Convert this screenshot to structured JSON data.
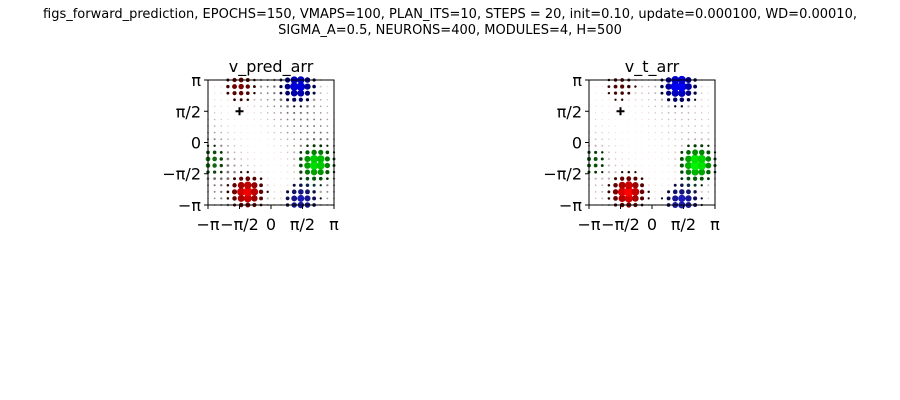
{
  "figure": {
    "suptitle_line1": "figs_forward_prediction, EPOCHS=150, VMAPS=100, PLAN_ITS=10, STEPS = 20, init=0.10, update=0.000100, WD=0.00010,",
    "suptitle_line2": "SIGMA_A=0.5, NEURONS=400, MODULES=4, H=500"
  },
  "chart_data": [
    {
      "type": "scatter",
      "title": "v_pred_arr",
      "xlabel": "",
      "ylabel": "",
      "xlim": [
        -3.1416,
        3.1416
      ],
      "ylim": [
        -3.1416,
        3.1416
      ],
      "x_ticks": [
        "−π",
        "−π/2",
        "0",
        "π/2",
        "π"
      ],
      "y_ticks": [
        "−π",
        "−π/2",
        "0",
        "π/2",
        "π"
      ],
      "grid_points": 20,
      "grid": false,
      "legend": "none",
      "marker": {
        "label": "+",
        "x": -1.5708,
        "y": 1.5708
      },
      "color_peaks": {
        "red": {
          "x": -1.2,
          "y": -2.5,
          "amplitude": 0.95
        },
        "green": {
          "x": 2.25,
          "y": -1.05,
          "amplitude": 0.9
        },
        "blue": {
          "x": 1.35,
          "y": 2.85,
          "amplitude": 0.9
        }
      },
      "secondary_peaks": [
        {
          "color": "#c00000",
          "x": -1.55,
          "y": 2.85,
          "amplitude": 0.5
        },
        {
          "color": "#2222dd",
          "x": 1.5,
          "y": -2.9,
          "amplitude": 0.7
        },
        {
          "color": "#1a8a1a",
          "x": -3.0,
          "y": -0.95,
          "amplitude": 0.45
        }
      ],
      "background_darkness": 0.55
    },
    {
      "type": "scatter",
      "title": "v_t_arr",
      "xlabel": "",
      "ylabel": "",
      "xlim": [
        -3.1416,
        3.1416
      ],
      "ylim": [
        -3.1416,
        3.1416
      ],
      "x_ticks": [
        "−π",
        "−π/2",
        "0",
        "π/2",
        "π"
      ],
      "y_ticks": [
        "−π",
        "−π/2",
        "0",
        "π/2",
        "π"
      ],
      "grid_points": 20,
      "grid": false,
      "legend": "none",
      "marker": {
        "label": "+",
        "x": -1.5708,
        "y": 1.5708
      },
      "color_peaks": {
        "red": {
          "x": -1.2,
          "y": -2.5,
          "amplitude": 1.0
        },
        "green": {
          "x": 2.25,
          "y": -1.05,
          "amplitude": 1.0
        },
        "blue": {
          "x": 1.35,
          "y": 2.85,
          "amplitude": 1.0
        }
      },
      "secondary_peaks": [
        {
          "color": "#aa0000",
          "x": -1.55,
          "y": 2.85,
          "amplitude": 0.35
        },
        {
          "color": "#2222dd",
          "x": 1.5,
          "y": -2.95,
          "amplitude": 0.75
        },
        {
          "color": "#0a7a0a",
          "x": -3.0,
          "y": -0.95,
          "amplitude": 0.35
        }
      ],
      "background_darkness": 0.25
    }
  ]
}
